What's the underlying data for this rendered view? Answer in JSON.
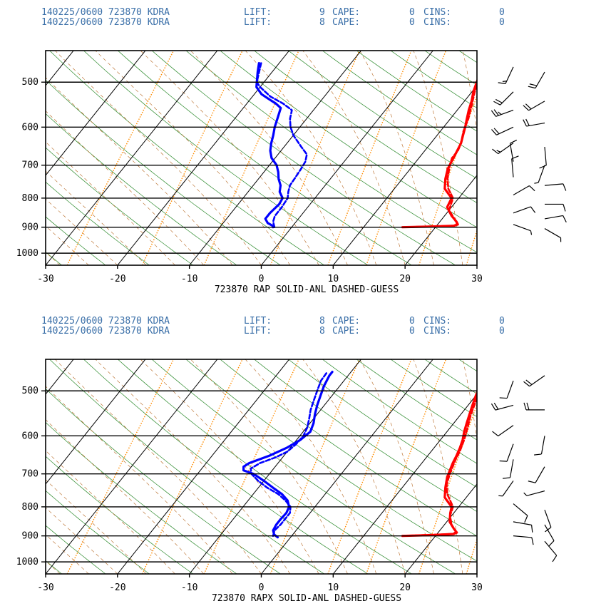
{
  "colors": {
    "header_text": "#3a6fa8",
    "isobar": "#000000",
    "isotherm": "#000000",
    "dry_adiabat": "#2e8b2e",
    "moist_adiabat": "#b5651d",
    "mixing_ratio": "#ff8c00",
    "temperature": "#ff0000",
    "dewpoint": "#0000ff",
    "wind_barb": "#000000"
  },
  "chart_data": [
    {
      "type": "line",
      "diagram": "skew-T log-P",
      "header_lines": [
        {
          "date_station": "140225/0600 723870 KDRA",
          "lift_label": "LIFT:",
          "lift": "9",
          "cape_label": "CAPE:",
          "cape": "0",
          "cins_label": "CINS:",
          "cins": "0"
        },
        {
          "date_station": "140225/0600 723870 KDRA",
          "lift_label": "LIFT:",
          "lift": "8",
          "cape_label": "CAPE:",
          "cape": "0",
          "cins_label": "CINS:",
          "cins": "0"
        }
      ],
      "subtitle": "723870  RAP  SOLID-ANL  DASHED-GUESS",
      "x_ticks": [
        "-30",
        "-20",
        "-10",
        "0",
        "10",
        "20",
        "30"
      ],
      "y_ticks": [
        "500",
        "600",
        "700",
        "800",
        "900",
        "1000"
      ],
      "x_range": [
        -30,
        30
      ],
      "p_range": [
        1050,
        440
      ],
      "series": [
        {
          "name": "temperature",
          "style": "solid",
          "color": "#ff0000",
          "points": [
            [
              900,
              15.4
            ],
            [
              898,
              19
            ],
            [
              895,
              22.4
            ],
            [
              890,
              22.8
            ],
            [
              880,
              22.3
            ],
            [
              860,
              21
            ],
            [
              830,
              19.4
            ],
            [
              800,
              19
            ],
            [
              770,
              17
            ],
            [
              740,
              16
            ],
            [
              710,
              15.2
            ],
            [
              680,
              14.8
            ],
            [
              660,
              14.5
            ],
            [
              640,
              14.2
            ],
            [
              620,
              13.6
            ],
            [
              600,
              13
            ],
            [
              580,
              12.3
            ],
            [
              560,
              11.6
            ],
            [
              540,
              11
            ],
            [
              520,
              10.2
            ],
            [
              500,
              9.6
            ],
            [
              480,
              9
            ],
            [
              463,
              8.6
            ]
          ]
        },
        {
          "name": "temperature",
          "style": "dashed",
          "color": "#ff0000",
          "points": [
            [
              900,
              15.5
            ],
            [
              895,
              22.3
            ],
            [
              890,
              22.7
            ],
            [
              870,
              21.7
            ],
            [
              840,
              20
            ],
            [
              800,
              19.2
            ],
            [
              770,
              17.5
            ],
            [
              740,
              16.3
            ],
            [
              700,
              15.1
            ],
            [
              680,
              14.6
            ],
            [
              660,
              14.6
            ],
            [
              640,
              14.2
            ],
            [
              610,
              13.2
            ],
            [
              580,
              12.5
            ],
            [
              550,
              11.5
            ],
            [
              520,
              10.4
            ],
            [
              500,
              9.8
            ],
            [
              480,
              9.2
            ],
            [
              463,
              8.8
            ]
          ]
        },
        {
          "name": "dewpoint",
          "style": "solid",
          "color": "#0000ff",
          "points": [
            [
              900,
              -2.6
            ],
            [
              895,
              -2.8
            ],
            [
              885,
              -3.8
            ],
            [
              870,
              -4.6
            ],
            [
              850,
              -4.6
            ],
            [
              820,
              -4.3
            ],
            [
              800,
              -4.5
            ],
            [
              780,
              -5.6
            ],
            [
              760,
              -6.2
            ],
            [
              740,
              -7.2
            ],
            [
              720,
              -8
            ],
            [
              700,
              -9
            ],
            [
              680,
              -10.5
            ],
            [
              660,
              -11.5
            ],
            [
              640,
              -12.2
            ],
            [
              620,
              -12.8
            ],
            [
              600,
              -13.5
            ],
            [
              575,
              -14.2
            ],
            [
              555,
              -14.8
            ],
            [
              545,
              -16
            ],
            [
              535,
              -17.5
            ],
            [
              525,
              -19
            ],
            [
              510,
              -20.5
            ],
            [
              500,
              -21
            ],
            [
              480,
              -22
            ],
            [
              463,
              -22.8
            ]
          ]
        },
        {
          "name": "dewpoint",
          "style": "dashed",
          "color": "#0000ff",
          "points": [
            [
              900,
              -2.4
            ],
            [
              880,
              -3.2
            ],
            [
              860,
              -3.6
            ],
            [
              830,
              -3.6
            ],
            [
              800,
              -3.8
            ],
            [
              780,
              -4.4
            ],
            [
              760,
              -4.9
            ],
            [
              740,
              -5
            ],
            [
              710,
              -5.2
            ],
            [
              690,
              -5.4
            ],
            [
              670,
              -6
            ],
            [
              650,
              -7.6
            ],
            [
              620,
              -10
            ],
            [
              600,
              -11.3
            ],
            [
              580,
              -12.3
            ],
            [
              560,
              -13
            ],
            [
              545,
              -15
            ],
            [
              530,
              -17.5
            ],
            [
              510,
              -20
            ],
            [
              500,
              -21
            ],
            [
              480,
              -21.8
            ],
            [
              463,
              -22.5
            ]
          ]
        }
      ],
      "wind_barbs_anl": [
        {
          "p": 470,
          "dir": 205,
          "spd": 18
        },
        {
          "p": 520,
          "dir": 225,
          "spd": 22
        },
        {
          "p": 560,
          "dir": 250,
          "spd": 28
        },
        {
          "p": 600,
          "dir": 245,
          "spd": 22
        },
        {
          "p": 640,
          "dir": 235,
          "spd": 18
        },
        {
          "p": 690,
          "dir": 350,
          "spd": 12
        },
        {
          "p": 735,
          "dir": 355,
          "spd": 10
        },
        {
          "p": 790,
          "dir": 60,
          "spd": 12
        },
        {
          "p": 850,
          "dir": 70,
          "spd": 10
        },
        {
          "p": 890,
          "dir": 110,
          "spd": 8
        }
      ],
      "wind_barbs_guess": [
        {
          "p": 480,
          "dir": 210,
          "spd": 20
        },
        {
          "p": 540,
          "dir": 240,
          "spd": 24
        },
        {
          "p": 590,
          "dir": 260,
          "spd": 26
        },
        {
          "p": 650,
          "dir": 175,
          "spd": 12
        },
        {
          "p": 700,
          "dir": 200,
          "spd": 8
        },
        {
          "p": 760,
          "dir": 85,
          "spd": 10
        },
        {
          "p": 820,
          "dir": 90,
          "spd": 12
        },
        {
          "p": 870,
          "dir": 80,
          "spd": 10
        },
        {
          "p": 905,
          "dir": 120,
          "spd": 8
        }
      ]
    },
    {
      "type": "line",
      "diagram": "skew-T log-P",
      "header_lines": [
        {
          "date_station": "140225/0600 723870 KDRA",
          "lift_label": "LIFT:",
          "lift": "8",
          "cape_label": "CAPE:",
          "cape": "0",
          "cins_label": "CINS:",
          "cins": "0"
        },
        {
          "date_station": "140225/0600 723870 KDRA",
          "lift_label": "LIFT:",
          "lift": "8",
          "cape_label": "CAPE:",
          "cape": "0",
          "cins_label": "CINS:",
          "cins": "0"
        }
      ],
      "subtitle": "723870  RAPX  SOLID-ANL  DASHED-GUESS",
      "x_ticks": [
        "-30",
        "-20",
        "-10",
        "0",
        "10",
        "20",
        "30"
      ],
      "y_ticks": [
        "500",
        "600",
        "700",
        "800",
        "900",
        "1000"
      ],
      "x_range": [
        -30,
        30
      ],
      "p_range": [
        1050,
        440
      ],
      "series": [
        {
          "name": "temperature",
          "style": "solid",
          "color": "#ff0000",
          "points": [
            [
              900,
              15.4
            ],
            [
              897,
              19.5
            ],
            [
              893,
              22.3
            ],
            [
              888,
              22.6
            ],
            [
              875,
              21.8
            ],
            [
              850,
              20.4
            ],
            [
              820,
              19.5
            ],
            [
              800,
              19
            ],
            [
              770,
              17
            ],
            [
              740,
              16
            ],
            [
              710,
              15.1
            ],
            [
              690,
              14.7
            ],
            [
              670,
              14.3
            ],
            [
              650,
              14
            ],
            [
              630,
              13.6
            ],
            [
              610,
              13.1
            ],
            [
              590,
              12.4
            ],
            [
              570,
              11.8
            ],
            [
              550,
              11.2
            ],
            [
              530,
              10.6
            ],
            [
              510,
              10
            ],
            [
              490,
              9.5
            ],
            [
              470,
              9
            ],
            [
              463,
              8.8
            ]
          ]
        },
        {
          "name": "temperature",
          "style": "dashed",
          "color": "#ff0000",
          "points": [
            [
              900,
              15.4
            ],
            [
              893,
              22.2
            ],
            [
              886,
              22.4
            ],
            [
              860,
              21
            ],
            [
              830,
              19.8
            ],
            [
              800,
              19.2
            ],
            [
              760,
              17
            ],
            [
              730,
              15.8
            ],
            [
              700,
              15.1
            ],
            [
              680,
              14.7
            ],
            [
              660,
              14.3
            ],
            [
              640,
              14
            ],
            [
              610,
              13.3
            ],
            [
              580,
              12.4
            ],
            [
              550,
              11.4
            ],
            [
              520,
              10.6
            ],
            [
              500,
              10
            ],
            [
              480,
              9.2
            ],
            [
              463,
              8.6
            ]
          ]
        },
        {
          "name": "dewpoint",
          "style": "solid",
          "color": "#0000ff",
          "points": [
            [
              905,
              -1.8
            ],
            [
              895,
              -2.6
            ],
            [
              880,
              -3.2
            ],
            [
              860,
              -3.4
            ],
            [
              840,
              -3.4
            ],
            [
              820,
              -3.3
            ],
            [
              800,
              -3.6
            ],
            [
              780,
              -4.5
            ],
            [
              760,
              -6
            ],
            [
              740,
              -8
            ],
            [
              720,
              -10
            ],
            [
              700,
              -12.2
            ],
            [
              690,
              -14
            ],
            [
              680,
              -14.4
            ],
            [
              670,
              -14
            ],
            [
              660,
              -13
            ],
            [
              650,
              -12
            ],
            [
              630,
              -10.5
            ],
            [
              610,
              -9.5
            ],
            [
              590,
              -9
            ],
            [
              570,
              -9.5
            ],
            [
              550,
              -10.3
            ],
            [
              530,
              -11
            ],
            [
              510,
              -11.6
            ],
            [
              490,
              -12.2
            ],
            [
              470,
              -12.6
            ],
            [
              463,
              -12.6
            ]
          ]
        },
        {
          "name": "dewpoint",
          "style": "dashed",
          "color": "#0000ff",
          "points": [
            [
              900,
              -2.6
            ],
            [
              880,
              -3
            ],
            [
              860,
              -2.8
            ],
            [
              840,
              -2.8
            ],
            [
              820,
              -2.8
            ],
            [
              800,
              -3.4
            ],
            [
              780,
              -4.8
            ],
            [
              760,
              -6.5
            ],
            [
              740,
              -8.8
            ],
            [
              720,
              -10.8
            ],
            [
              700,
              -12.5
            ],
            [
              685,
              -13.2
            ],
            [
              670,
              -12.5
            ],
            [
              655,
              -11
            ],
            [
              640,
              -10
            ],
            [
              620,
              -9.6
            ],
            [
              600,
              -9.5
            ],
            [
              580,
              -9.9
            ],
            [
              560,
              -10.6
            ],
            [
              540,
              -11.4
            ],
            [
              520,
              -12
            ],
            [
              500,
              -12.6
            ],
            [
              480,
              -13.2
            ],
            [
              463,
              -13.3
            ]
          ]
        }
      ],
      "wind_barbs_anl": [
        {
          "p": 480,
          "dir": 200,
          "spd": 12
        },
        {
          "p": 530,
          "dir": 255,
          "spd": 20
        },
        {
          "p": 575,
          "dir": 235,
          "spd": 14
        },
        {
          "p": 620,
          "dir": 200,
          "spd": 12
        },
        {
          "p": 660,
          "dir": 190,
          "spd": 10
        },
        {
          "p": 720,
          "dir": 215,
          "spd": 8
        },
        {
          "p": 790,
          "dir": 130,
          "spd": 10
        },
        {
          "p": 850,
          "dir": 100,
          "spd": 14
        },
        {
          "p": 900,
          "dir": 95,
          "spd": 12
        }
      ],
      "wind_barbs_guess": [
        {
          "p": 470,
          "dir": 235,
          "spd": 24
        },
        {
          "p": 540,
          "dir": 270,
          "spd": 22
        },
        {
          "p": 600,
          "dir": 190,
          "spd": 12
        },
        {
          "p": 680,
          "dir": 210,
          "spd": 10
        },
        {
          "p": 750,
          "dir": 255,
          "spd": 8
        },
        {
          "p": 810,
          "dir": 160,
          "spd": 14
        },
        {
          "p": 860,
          "dir": 150,
          "spd": 16
        },
        {
          "p": 920,
          "dir": 140,
          "spd": 10
        }
      ]
    }
  ]
}
